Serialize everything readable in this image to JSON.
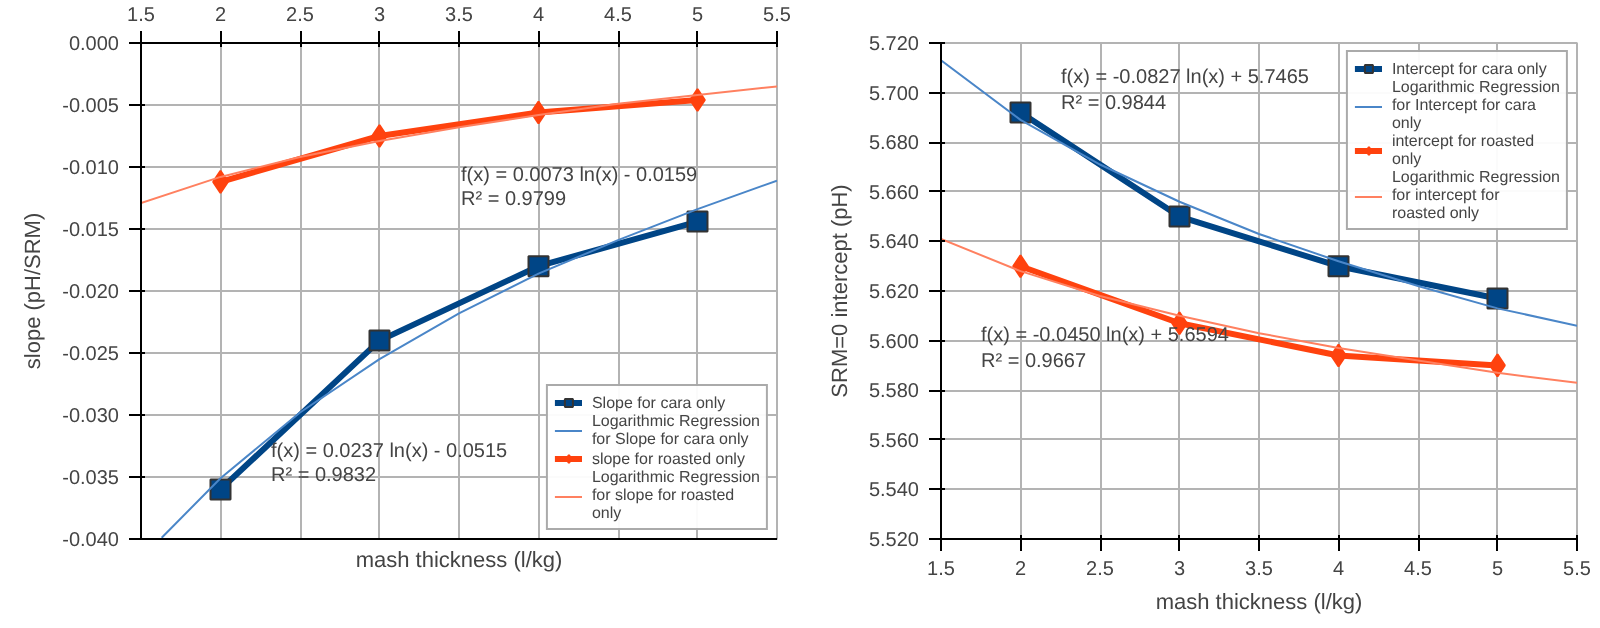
{
  "chart_data": [
    {
      "type": "line",
      "ylabel": "slope (pH/SRM)",
      "xlabel": "mash thickness (l/kg)",
      "xlim": [
        1.5,
        5.5
      ],
      "xticks": [
        1.5,
        2,
        2.5,
        3,
        3.5,
        4,
        4.5,
        5,
        5.5
      ],
      "ylim": [
        -0.04,
        0
      ],
      "yticks": [
        {
          "value": -0.04,
          "label": "-0.040"
        },
        {
          "value": -0.035,
          "label": "-0.035"
        },
        {
          "value": -0.03,
          "label": "-0.030"
        },
        {
          "value": -0.025,
          "label": "-0.025"
        },
        {
          "value": -0.02,
          "label": "-0.020"
        },
        {
          "value": -0.015,
          "label": "-0.015"
        },
        {
          "value": -0.01,
          "label": "-0.010"
        },
        {
          "value": -0.005,
          "label": "-0.005"
        },
        {
          "value": 0,
          "label": "0.000"
        }
      ],
      "grid": true,
      "legend": "bottom right",
      "x": [
        2,
        3,
        4,
        5
      ],
      "series": [
        {
          "name": "Slope for cara only",
          "color": "#004586",
          "marker": "square",
          "values": [
            -0.036,
            -0.024,
            -0.018,
            -0.0144
          ]
        },
        {
          "name": "Logarithmic Regression for Slope for cara only",
          "color": "#4a86c8",
          "marker": "none",
          "x": [
            1.63,
            2,
            2.5,
            3,
            3.5,
            4,
            4.5,
            5,
            5.5
          ],
          "values": [
            -0.0399,
            -0.0351,
            -0.0298,
            -0.0255,
            -0.0218,
            -0.0186,
            -0.0159,
            -0.0134,
            -0.0111
          ]
        },
        {
          "name": "slope for roasted only",
          "color": "#ff420e",
          "marker": "diamond",
          "values": [
            -0.0112,
            -0.0075,
            -0.0056,
            -0.0046
          ]
        },
        {
          "name": "Logarithmic Regression for slope for roasted only",
          "color": "#ff8060",
          "marker": "none",
          "x": [
            1.5,
            2,
            2.5,
            3,
            3.5,
            4,
            4.5,
            5,
            5.5
          ],
          "values": [
            -0.0129,
            -0.0108,
            -0.0092,
            -0.0079,
            -0.0068,
            -0.0058,
            -0.0049,
            -0.0042,
            -0.0035
          ]
        }
      ],
      "annotations": [
        "f(x) = 0.0073 ln(x) - 0.0159",
        "R² = 0.9799",
        "f(x) = 0.0237 ln(x) - 0.0515",
        "R² = 0.9832"
      ]
    },
    {
      "type": "line",
      "ylabel": "SRM=0 intercept (pH)",
      "xlabel": "mash thickness (l/kg)",
      "xlim": [
        1.5,
        5.5
      ],
      "xticks": [
        1.5,
        2,
        2.5,
        3,
        3.5,
        4,
        4.5,
        5,
        5.5
      ],
      "ylim": [
        5.52,
        5.72
      ],
      "yticks": [
        {
          "value": 5.52,
          "label": "5.520"
        },
        {
          "value": 5.54,
          "label": "5.540"
        },
        {
          "value": 5.56,
          "label": "5.560"
        },
        {
          "value": 5.58,
          "label": "5.580"
        },
        {
          "value": 5.6,
          "label": "5.600"
        },
        {
          "value": 5.62,
          "label": "5.620"
        },
        {
          "value": 5.64,
          "label": "5.640"
        },
        {
          "value": 5.66,
          "label": "5.660"
        },
        {
          "value": 5.68,
          "label": "5.680"
        },
        {
          "value": 5.7,
          "label": "5.700"
        },
        {
          "value": 5.72,
          "label": "5.720"
        }
      ],
      "grid": true,
      "legend": "top right",
      "x": [
        2,
        3,
        4,
        5
      ],
      "series": [
        {
          "name": "Intercept for cara only",
          "color": "#004586",
          "marker": "square",
          "values": [
            5.692,
            5.65,
            5.63,
            5.617
          ]
        },
        {
          "name": "Logarithmic Regression for Intercept for cara only",
          "color": "#4a86c8",
          "marker": "none",
          "x": [
            1.5,
            2,
            2.5,
            3,
            3.5,
            4,
            4.5,
            5,
            5.5
          ],
          "values": [
            5.713,
            5.689,
            5.671,
            5.656,
            5.643,
            5.632,
            5.622,
            5.613,
            5.606
          ]
        },
        {
          "name": "intercept for roasted only",
          "color": "#ff420e",
          "marker": "diamond",
          "values": [
            5.63,
            5.607,
            5.594,
            5.59
          ]
        },
        {
          "name": "Logarithmic Regression for intercept for roasted only",
          "color": "#ff8060",
          "marker": "none",
          "x": [
            1.5,
            2,
            2.5,
            3,
            3.5,
            4,
            4.5,
            5,
            5.5
          ],
          "values": [
            5.641,
            5.628,
            5.618,
            5.61,
            5.603,
            5.597,
            5.592,
            5.587,
            5.583
          ]
        }
      ],
      "annotations": [
        "f(x) = -0.0827 ln(x) + 5.7465",
        "R² = 0.9844",
        "f(x) = -0.0450 ln(x) + 5.6594",
        "R² = 0.9667"
      ]
    }
  ]
}
